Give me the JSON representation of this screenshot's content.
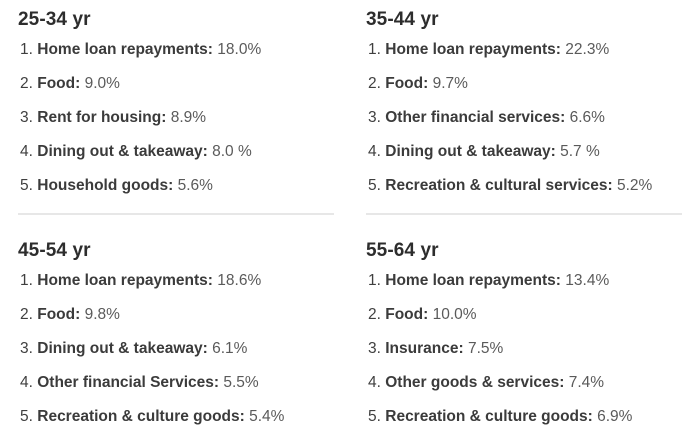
{
  "sections": [
    {
      "title": "25-34 yr",
      "items": [
        {
          "rank": "1.",
          "label": "Home loan repayments:",
          "value": "18.0%"
        },
        {
          "rank": "2.",
          "label": "Food:",
          "value": "9.0%"
        },
        {
          "rank": "3.",
          "label": "Rent for housing:",
          "value": "8.9%"
        },
        {
          "rank": "4.",
          "label": "Dining out & takeaway:",
          "value": "8.0 %"
        },
        {
          "rank": "5.",
          "label": "Household goods:",
          "value": "5.6%"
        }
      ]
    },
    {
      "title": "35-44 yr",
      "items": [
        {
          "rank": "1.",
          "label": "Home loan repayments:",
          "value": "22.3%"
        },
        {
          "rank": "2.",
          "label": "Food:",
          "value": "9.7%"
        },
        {
          "rank": "3.",
          "label": "Other financial services:",
          "value": "6.6%"
        },
        {
          "rank": "4.",
          "label": "Dining out & takeaway:",
          "value": "5.7 %"
        },
        {
          "rank": "5.",
          "label": "Recreation & cultural services:",
          "value": "5.2%"
        }
      ]
    },
    {
      "title": "45-54 yr",
      "items": [
        {
          "rank": "1.",
          "label": "Home loan repayments:",
          "value": "18.6%"
        },
        {
          "rank": "2.",
          "label": "Food:",
          "value": "9.8%"
        },
        {
          "rank": "3.",
          "label": "Dining out & takeaway:",
          "value": "6.1%"
        },
        {
          "rank": "4.",
          "label": "Other financial Services:",
          "value": "5.5%"
        },
        {
          "rank": "5.",
          "label": "Recreation & culture goods:",
          "value": "5.4%"
        }
      ]
    },
    {
      "title": "55-64 yr",
      "items": [
        {
          "rank": "1.",
          "label": "Home loan repayments:",
          "value": "13.4%"
        },
        {
          "rank": "2.",
          "label": "Food:",
          "value": "10.0%"
        },
        {
          "rank": "3.",
          "label": "Insurance:",
          "value": "7.5%"
        },
        {
          "rank": "4.",
          "label": "Other goods & services:",
          "value": "7.4%"
        },
        {
          "rank": "5.",
          "label": "Recreation & culture goods:",
          "value": "6.9%"
        }
      ]
    }
  ]
}
